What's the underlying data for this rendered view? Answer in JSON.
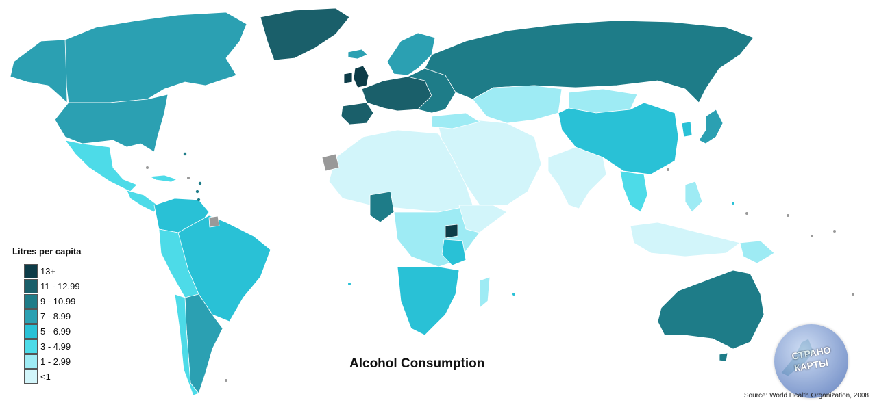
{
  "title": "Alcohol Consumption",
  "source": "Source: World Health Organization, 2008",
  "legend": {
    "title": "Litres per capita",
    "items": [
      {
        "label": "13+",
        "color": "#0d3c48"
      },
      {
        "label": "11 - 12.99",
        "color": "#1a5f6a"
      },
      {
        "label": "9 - 10.99",
        "color": "#1e7c88"
      },
      {
        "label": "7 - 8.99",
        "color": "#2ba0b2"
      },
      {
        "label": "5 - 6.99",
        "color": "#29c1d6"
      },
      {
        "label": "3 - 4.99",
        "color": "#4ddbe8"
      },
      {
        "label": "1 - 2.99",
        "color": "#9eebf4"
      },
      {
        "label": "<1",
        "color": "#d2f5fa"
      }
    ]
  },
  "no_data_color": "#999999",
  "logo": {
    "line1": "СТРАНО",
    "line2": "КАРТЫ"
  }
}
